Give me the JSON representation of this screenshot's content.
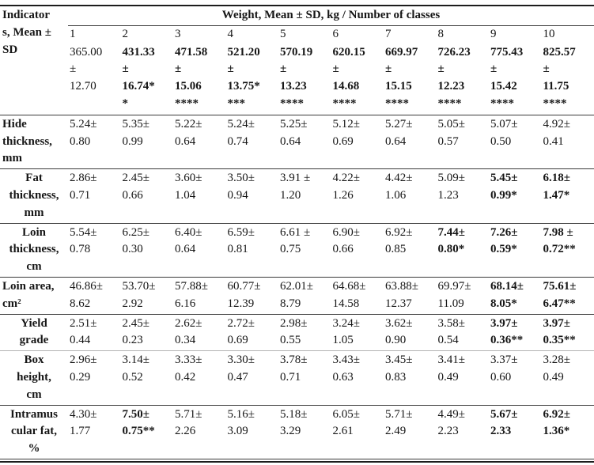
{
  "table": {
    "corner_header_lines": [
      "Indicator",
      "s, Mean ±",
      "SD"
    ],
    "span_header": "Weight, Mean ± SD, kg / Number of classes",
    "class_numbers": [
      "1",
      "2",
      "3",
      "4",
      "5",
      "6",
      "7",
      "8",
      "9",
      "10"
    ],
    "weight_cells": [
      {
        "lines": [
          "365.00",
          "±",
          "12.70"
        ],
        "bold": false
      },
      {
        "lines": [
          "431.33",
          "±",
          "16.74*",
          "*"
        ],
        "bold": true
      },
      {
        "lines": [
          "471.58",
          "±",
          "15.06",
          "****"
        ],
        "bold": true
      },
      {
        "lines": [
          "521.20",
          "±",
          "13.75*",
          "***"
        ],
        "bold": true
      },
      {
        "lines": [
          "570.19",
          "±",
          "13.23",
          "****"
        ],
        "bold": true
      },
      {
        "lines": [
          "620.15",
          "±",
          "14.68",
          "****"
        ],
        "bold": true
      },
      {
        "lines": [
          "669.97",
          "±",
          "15.15",
          "****"
        ],
        "bold": true
      },
      {
        "lines": [
          "726.23",
          "±",
          "12.23",
          "****"
        ],
        "bold": true
      },
      {
        "lines": [
          "775.43",
          "±",
          "15.42",
          "****"
        ],
        "bold": true
      },
      {
        "lines": [
          "825.57",
          "±",
          "11.75",
          "****"
        ],
        "bold": true
      }
    ],
    "rows": [
      {
        "label_lines": [
          "Hide",
          "thickness,",
          "mm"
        ],
        "label_align": "left",
        "rule": "dark",
        "cells": [
          {
            "lines": [
              "5.24±",
              "0.80"
            ],
            "bold": false
          },
          {
            "lines": [
              "5.35±",
              "0.99"
            ],
            "bold": false
          },
          {
            "lines": [
              "5.22±",
              "0.64"
            ],
            "bold": false
          },
          {
            "lines": [
              "5.24±",
              "0.74"
            ],
            "bold": false
          },
          {
            "lines": [
              "5.25±",
              "0.64"
            ],
            "bold": false
          },
          {
            "lines": [
              "5.12±",
              "0.69"
            ],
            "bold": false
          },
          {
            "lines": [
              "5.27±",
              "0.64"
            ],
            "bold": false
          },
          {
            "lines": [
              "5.05±",
              "0.57"
            ],
            "bold": false
          },
          {
            "lines": [
              "5.07±",
              "0.50"
            ],
            "bold": false
          },
          {
            "lines": [
              "4.92±",
              "0.41"
            ],
            "bold": false
          }
        ]
      },
      {
        "label_lines": [
          "Fat",
          "thickness,",
          "mm"
        ],
        "label_align": "center",
        "rule": "dark",
        "cells": [
          {
            "lines": [
              "2.86±",
              "0.71"
            ],
            "bold": false
          },
          {
            "lines": [
              "2.45±",
              "0.66"
            ],
            "bold": false
          },
          {
            "lines": [
              "3.60±",
              "1.04"
            ],
            "bold": false
          },
          {
            "lines": [
              "3.50±",
              "0.94"
            ],
            "bold": false
          },
          {
            "lines": [
              "3.91 ±",
              "1.20"
            ],
            "bold": false
          },
          {
            "lines": [
              "4.22±",
              "1.26"
            ],
            "bold": false
          },
          {
            "lines": [
              "4.42±",
              "1.06"
            ],
            "bold": false
          },
          {
            "lines": [
              "5.09±",
              "1.23"
            ],
            "bold": false
          },
          {
            "lines": [
              "5.45±",
              "0.99*"
            ],
            "bold": true
          },
          {
            "lines": [
              "6.18±",
              "1.47*"
            ],
            "bold": true
          }
        ]
      },
      {
        "label_lines": [
          "Loin",
          "thickness,",
          "cm"
        ],
        "label_align": "center",
        "rule": "dark",
        "cells": [
          {
            "lines": [
              "5.54±",
              "0.78"
            ],
            "bold": false
          },
          {
            "lines": [
              "6.25±",
              "0.30"
            ],
            "bold": false
          },
          {
            "lines": [
              "6.40±",
              "0.64"
            ],
            "bold": false
          },
          {
            "lines": [
              "6.59±",
              "0.81"
            ],
            "bold": false
          },
          {
            "lines": [
              "6.61 ±",
              "0.75"
            ],
            "bold": false
          },
          {
            "lines": [
              "6.90±",
              "0.66"
            ],
            "bold": false
          },
          {
            "lines": [
              "6.92±",
              "0.85"
            ],
            "bold": false
          },
          {
            "lines": [
              "7.44±",
              "0.80*"
            ],
            "bold": true
          },
          {
            "lines": [
              "7.26±",
              "0.59*"
            ],
            "bold": true
          },
          {
            "lines": [
              "7.98 ±",
              "0.72**"
            ],
            "bold": true
          }
        ]
      },
      {
        "label_lines": [
          "Loin area,",
          "cm²"
        ],
        "label_align": "left",
        "rule": "dark",
        "cells": [
          {
            "lines": [
              "46.86±",
              "8.62"
            ],
            "bold": false
          },
          {
            "lines": [
              "53.70±",
              "2.92"
            ],
            "bold": false
          },
          {
            "lines": [
              "57.88±",
              "6.16"
            ],
            "bold": false
          },
          {
            "lines": [
              "60.77±",
              "12.39"
            ],
            "bold": false
          },
          {
            "lines": [
              "62.01±",
              "8.79"
            ],
            "bold": false
          },
          {
            "lines": [
              "64.68±",
              "14.58"
            ],
            "bold": false
          },
          {
            "lines": [
              "63.88±",
              "12.37"
            ],
            "bold": false
          },
          {
            "lines": [
              "69.97±",
              "11.09"
            ],
            "bold": false
          },
          {
            "lines": [
              "68.14±",
              "8.05*"
            ],
            "bold": true
          },
          {
            "lines": [
              "75.61±",
              "6.47**"
            ],
            "bold": true
          }
        ]
      },
      {
        "label_lines": [
          "Yield",
          "grade"
        ],
        "label_align": "center",
        "rule": "light",
        "cells": [
          {
            "lines": [
              "2.51±",
              "0.44"
            ],
            "bold": false
          },
          {
            "lines": [
              "2.45±",
              "0.23"
            ],
            "bold": false
          },
          {
            "lines": [
              "2.62±",
              "0.34"
            ],
            "bold": false
          },
          {
            "lines": [
              "2.72±",
              "0.69"
            ],
            "bold": false
          },
          {
            "lines": [
              "2.98±",
              "0.55"
            ],
            "bold": false
          },
          {
            "lines": [
              "3.24±",
              "1.05"
            ],
            "bold": false
          },
          {
            "lines": [
              "3.62±",
              "0.90"
            ],
            "bold": false
          },
          {
            "lines": [
              "3.58±",
              "0.54"
            ],
            "bold": false
          },
          {
            "lines": [
              "3.97±",
              "0.36**"
            ],
            "bold": true
          },
          {
            "lines": [
              "3.97±",
              "0.35**"
            ],
            "bold": true
          }
        ]
      },
      {
        "label_lines": [
          "Box",
          "height,",
          "cm"
        ],
        "label_align": "center",
        "rule": "dark",
        "cells": [
          {
            "lines": [
              "2.96±",
              "0.29"
            ],
            "bold": false
          },
          {
            "lines": [
              "3.14±",
              "0.52"
            ],
            "bold": false
          },
          {
            "lines": [
              "3.33±",
              "0.42"
            ],
            "bold": false
          },
          {
            "lines": [
              "3.30±",
              "0.47"
            ],
            "bold": false
          },
          {
            "lines": [
              "3.78±",
              "0.71"
            ],
            "bold": false
          },
          {
            "lines": [
              "3.43±",
              "0.63"
            ],
            "bold": false
          },
          {
            "lines": [
              "3.45±",
              "0.83"
            ],
            "bold": false
          },
          {
            "lines": [
              "3.41±",
              "0.49"
            ],
            "bold": false
          },
          {
            "lines": [
              "3.37±",
              "0.60"
            ],
            "bold": false
          },
          {
            "lines": [
              "3.28±",
              "0.49"
            ],
            "bold": false
          }
        ]
      },
      {
        "label_lines": [
          "Intramus",
          "cular fat,",
          "%"
        ],
        "label_align": "center",
        "rule": "dark",
        "cells": [
          {
            "lines": [
              "4.30±",
              "1.77"
            ],
            "bold": false
          },
          {
            "lines": [
              "7.50±",
              "0.75**"
            ],
            "bold": true
          },
          {
            "lines": [
              "5.71±",
              "2.26"
            ],
            "bold": false
          },
          {
            "lines": [
              "5.16±",
              "3.09"
            ],
            "bold": false
          },
          {
            "lines": [
              "5.18±",
              "3.29"
            ],
            "bold": false
          },
          {
            "lines": [
              "6.05±",
              "2.61"
            ],
            "bold": false
          },
          {
            "lines": [
              "5.71±",
              "2.49"
            ],
            "bold": false
          },
          {
            "lines": [
              "4.49±",
              "2.23"
            ],
            "bold": false
          },
          {
            "lines": [
              "5.67±",
              "2.33"
            ],
            "bold": true
          },
          {
            "lines": [
              "6.92±",
              "1.36*"
            ],
            "bold": true
          }
        ]
      }
    ]
  }
}
